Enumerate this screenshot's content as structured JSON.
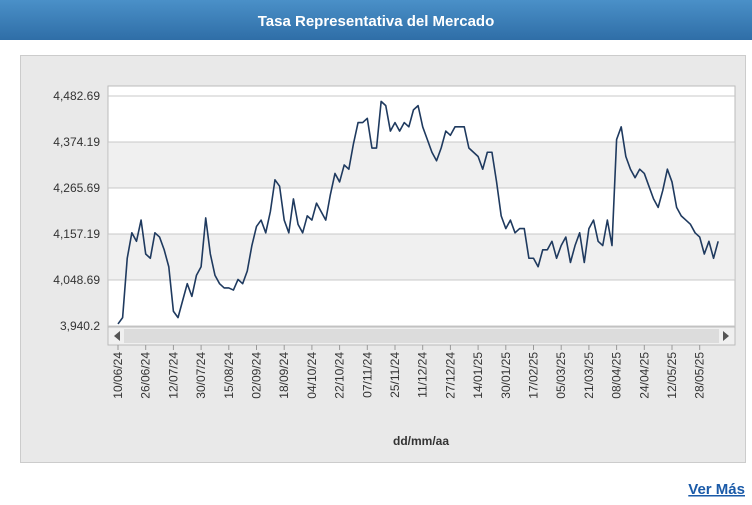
{
  "chart_data": {
    "type": "line",
    "title": "Tasa Representativa del Mercado",
    "x_label": "dd/mm/aa",
    "categories": [
      "10/06/24",
      null,
      null,
      null,
      null,
      null,
      "26/06/24",
      null,
      null,
      null,
      null,
      null,
      "12/07/24",
      null,
      null,
      null,
      null,
      null,
      "30/07/24",
      null,
      null,
      null,
      null,
      null,
      "15/08/24",
      null,
      null,
      null,
      null,
      null,
      "02/09/24",
      null,
      null,
      null,
      null,
      null,
      "18/09/24",
      null,
      null,
      null,
      null,
      null,
      "04/10/24",
      null,
      null,
      null,
      null,
      null,
      "22/10/24",
      null,
      null,
      null,
      null,
      null,
      "07/11/24",
      null,
      null,
      null,
      null,
      null,
      "25/11/24",
      null,
      null,
      null,
      null,
      null,
      "11/12/24",
      null,
      null,
      null,
      null,
      null,
      "27/12/24",
      null,
      null,
      null,
      null,
      null,
      "14/01/25",
      null,
      null,
      null,
      null,
      null,
      "30/01/25",
      null,
      null,
      null,
      null,
      null,
      "17/02/25",
      null,
      null,
      null,
      null,
      null,
      "05/03/25",
      null,
      null,
      null,
      null,
      null,
      "21/03/25",
      null,
      null,
      null,
      null,
      null,
      "08/04/25",
      null,
      null,
      null,
      null,
      null,
      "24/04/25",
      null,
      null,
      null,
      null,
      null,
      "12/05/25",
      null,
      null,
      null,
      null,
      null,
      "28/05/25",
      null,
      null,
      null,
      null
    ],
    "series": [
      {
        "color": "#1f3a5f",
        "values": [
          3945,
          3960,
          4100,
          4160,
          4140,
          4190,
          4110,
          4100,
          4160,
          4150,
          4120,
          4080,
          3975,
          3960,
          4000,
          4040,
          4010,
          4060,
          4080,
          4195,
          4110,
          4060,
          4040,
          4030,
          4030,
          4025,
          4050,
          4040,
          4070,
          4130,
          4175,
          4190,
          4160,
          4210,
          4285,
          4270,
          4190,
          4160,
          4240,
          4180,
          4160,
          4200,
          4190,
          4230,
          4210,
          4190,
          4250,
          4300,
          4280,
          4320,
          4310,
          4370,
          4420,
          4420,
          4430,
          4360,
          4360,
          4470,
          4460,
          4400,
          4420,
          4400,
          4420,
          4410,
          4450,
          4460,
          4410,
          4380,
          4350,
          4330,
          4360,
          4400,
          4390,
          4410,
          4410,
          4410,
          4360,
          4350,
          4340,
          4310,
          4350,
          4350,
          4280,
          4200,
          4170,
          4190,
          4160,
          4170,
          4170,
          4100,
          4100,
          4080,
          4120,
          4120,
          4140,
          4100,
          4130,
          4150,
          4090,
          4130,
          4160,
          4090,
          4170,
          4190,
          4140,
          4130,
          4190,
          4130,
          4380,
          4410,
          4340,
          4310,
          4290,
          4310,
          4300,
          4270,
          4240,
          4220,
          4260,
          4310,
          4280,
          4220,
          4200,
          4190,
          4180,
          4160,
          4150,
          4110,
          4140,
          4100,
          4140
        ]
      }
    ],
    "ylim": [
      3940.2,
      4482.69
    ],
    "yticks": [
      {
        "value": 3940.2,
        "label": "3,940.2"
      },
      {
        "value": 4048.69,
        "label": "4,048.69"
      },
      {
        "value": 4157.19,
        "label": "4,157.19"
      },
      {
        "value": 4265.69,
        "label": "4,265.69"
      },
      {
        "value": 4374.19,
        "label": "4,374.19"
      },
      {
        "value": 4482.69,
        "label": "4,482.69"
      }
    ],
    "grid": true
  },
  "link": "Ver Más"
}
